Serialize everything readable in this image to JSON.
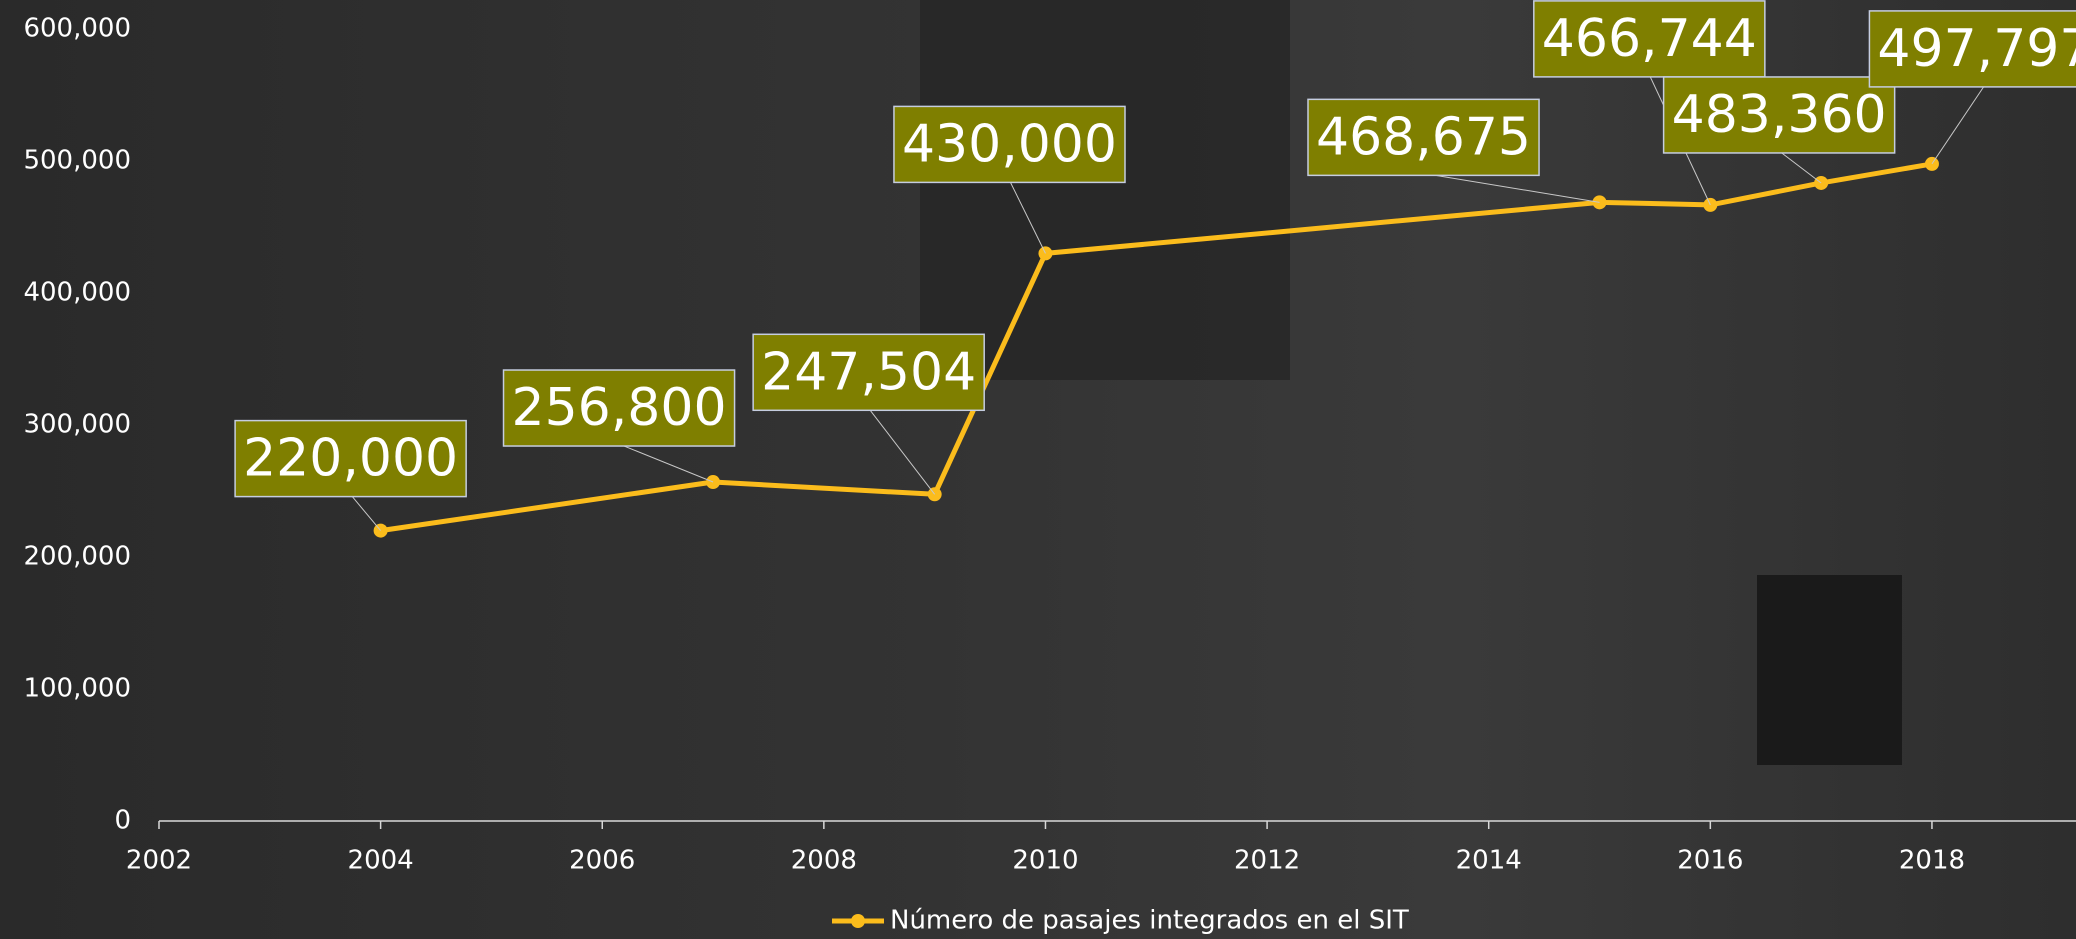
{
  "chart_data": {
    "type": "line",
    "x": [
      2004,
      2007,
      2009,
      2010,
      2015,
      2016,
      2017,
      2018
    ],
    "series": [
      {
        "name": "Número de pasajes integrados en el SIT",
        "color": "#fbbc1c",
        "values": [
          220000,
          256800,
          247504,
          430000,
          468675,
          466744,
          483360,
          497797
        ],
        "value_labels": [
          "220,000",
          "256,800",
          "247,504",
          "430,000",
          "468,675",
          "466,744",
          "483,360",
          "497,797"
        ]
      }
    ],
    "xlim": [
      2002,
      2019.3
    ],
    "xticks": [
      2002,
      2004,
      2006,
      2008,
      2010,
      2012,
      2014,
      2016,
      2018
    ],
    "ylim": [
      0,
      600000
    ],
    "yticks": [
      0,
      {
        "value": 100000,
        "label": "100,000"
      },
      {
        "value": 200000,
        "label": "200,000"
      },
      {
        "value": 300000,
        "label": "300,000"
      },
      {
        "value": 400000,
        "label": "400,000"
      },
      {
        "value": 500000,
        "label": "500,000"
      },
      {
        "value": 600000,
        "label": "600,000"
      }
    ],
    "label_fill": "#7f7f00",
    "legend": "bottom"
  }
}
